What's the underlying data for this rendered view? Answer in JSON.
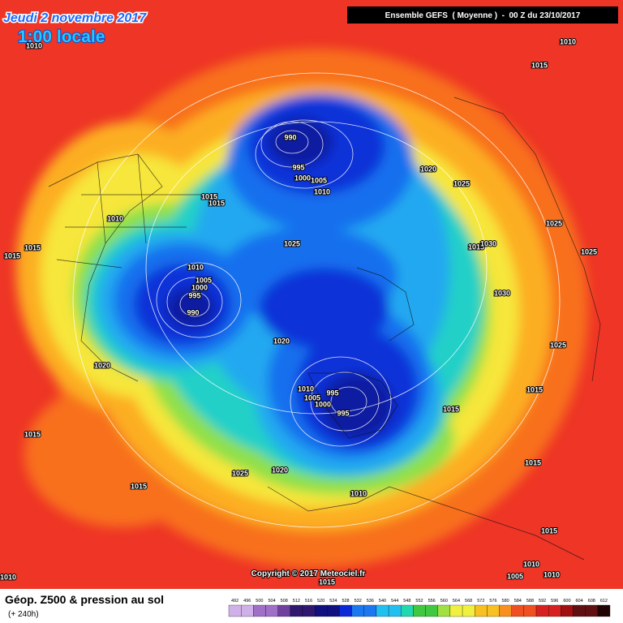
{
  "header": {
    "date": "Jeudi 2 novembre 2017",
    "time": "1:00 locale",
    "run": "Ensemble GEFS  ( Moyenne )  -  00 Z du 23/10/2017"
  },
  "isobar_labels": [
    "1010",
    "1010",
    "1015",
    "990",
    "995",
    "1000",
    "1005",
    "1010",
    "1020",
    "1025",
    "1015",
    "1015",
    "1010",
    "1025",
    "1025",
    "1015",
    "1015",
    "1015",
    "1030",
    "1025",
    "1010",
    "1005",
    "1000",
    "995",
    "990",
    "1030",
    "1020",
    "1025",
    "1020",
    "1010",
    "1005",
    "995",
    "1000",
    "995",
    "1015",
    "1015",
    "1015",
    "1015",
    "1025",
    "1020",
    "1015",
    "1010",
    "1015",
    "1010",
    "1005",
    "1010",
    "1010",
    "1015"
  ],
  "copyright": "Copyright © 2017 Meteociel.fr",
  "legend": {
    "title": "Géop. Z500 & pression au sol",
    "lead": "(+ 240h)",
    "scale": [
      "492",
      "496",
      "500",
      "504",
      "508",
      "512",
      "516",
      "520",
      "524",
      "528",
      "532",
      "536",
      "540",
      "544",
      "548",
      "552",
      "556",
      "560",
      "564",
      "568",
      "572",
      "576",
      "580",
      "584",
      "588",
      "592",
      "596",
      "600",
      "604",
      "608",
      "612"
    ]
  }
}
